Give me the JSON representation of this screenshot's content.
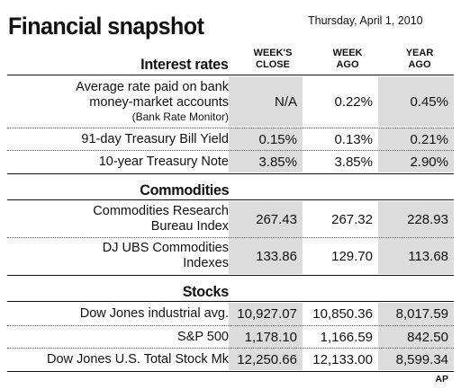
{
  "title": "Financial snapshot",
  "date": "Thursday, April 1, 2010",
  "columns": {
    "weeks_close": [
      "WEEK'S",
      "CLOSE"
    ],
    "week_ago": [
      "WEEK",
      "AGO"
    ],
    "year_ago": [
      "YEAR",
      "AGO"
    ]
  },
  "interest_rates": {
    "heading": "Interest rates",
    "rows": [
      {
        "label": [
          "Average rate paid on bank",
          "money-market accounts"
        ],
        "source": "(Bank Rate Monitor)",
        "weeks_close": "N/A",
        "week_ago": "0.22%",
        "year_ago": "0.45%"
      },
      {
        "label": [
          "91-day Treasury Bill Yield"
        ],
        "weeks_close": "0.15%",
        "week_ago": "0.13%",
        "year_ago": "0.21%"
      },
      {
        "label": [
          "10-year Treasury Note"
        ],
        "weeks_close": "3.85%",
        "week_ago": "3.85%",
        "year_ago": "2.90%"
      }
    ]
  },
  "commodities": {
    "heading": "Commodities",
    "rows": [
      {
        "label": [
          "Commodities Research",
          "Bureau Index"
        ],
        "weeks_close": "267.43",
        "week_ago": "267.32",
        "year_ago": "228.93"
      },
      {
        "label": [
          "DJ UBS Commodities",
          "Indexes"
        ],
        "weeks_close": "133.86",
        "week_ago": "129.70",
        "year_ago": "113.68"
      }
    ]
  },
  "stocks": {
    "heading": "Stocks",
    "rows": [
      {
        "label": [
          "Dow Jones industrial avg."
        ],
        "weeks_close": "10,927.07",
        "week_ago": "10,850.36",
        "year_ago": "8,017.59"
      },
      {
        "label": [
          "S&P 500"
        ],
        "weeks_close": "1,178.10",
        "week_ago": "1,166.59",
        "year_ago": "842.50"
      },
      {
        "label": [
          "Dow Jones U.S. Total Stock Mkt"
        ],
        "weeks_close": "12,250.66",
        "week_ago": "12,133.00",
        "year_ago": "8,599.34"
      }
    ]
  },
  "credit": "AP"
}
